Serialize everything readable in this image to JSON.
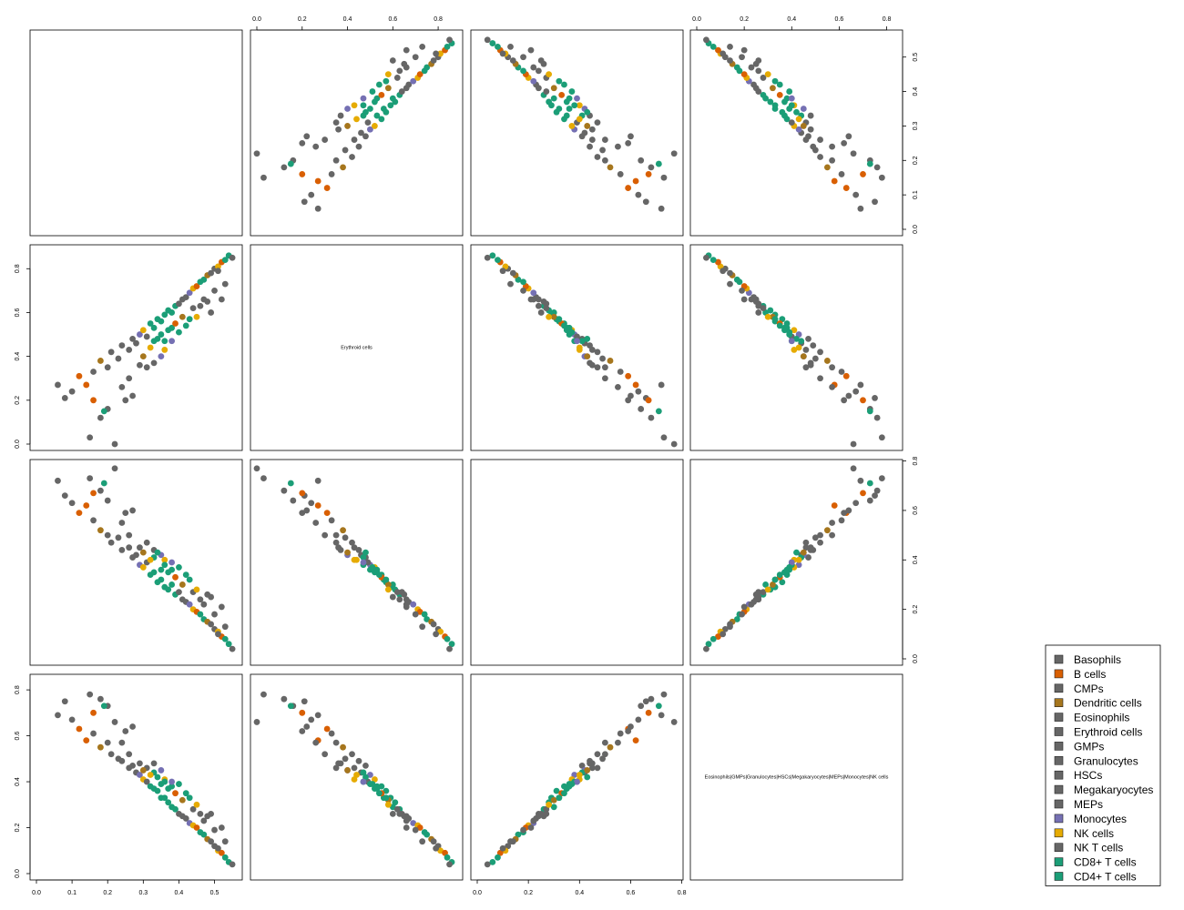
{
  "chart_data": {
    "type": "scatter",
    "kind": "scatterplot-matrix",
    "grid": false,
    "legend_position": "bottom-right",
    "variables": [
      {
        "label": "",
        "range": [
          0,
          0.56
        ],
        "ticks": [
          "0.0",
          "0.1",
          "0.2",
          "0.3",
          "0.4",
          "0.5"
        ]
      },
      {
        "label": "Erythroid cells",
        "range": [
          0,
          0.88
        ],
        "ticks": [
          "0.0",
          "0.2",
          "0.4",
          "0.6",
          "0.8"
        ]
      },
      {
        "label": "",
        "range": [
          0,
          0.78
        ],
        "ticks": [
          "0.0",
          "0.2",
          "0.4",
          "0.6",
          "0.8"
        ]
      },
      {
        "label": "Eosinophils|GMPs|Granulocytes|HSCs|Megakaryocytes|MEPs|Monocytes|NK cells",
        "range": [
          0,
          0.84
        ],
        "ticks": [
          "0.0",
          "0.2",
          "0.4",
          "0.6",
          "0.8"
        ]
      }
    ],
    "legend": [
      {
        "name": "Basophils",
        "color": "#666666"
      },
      {
        "name": "B cells",
        "color": "#D95F02"
      },
      {
        "name": "CMPs",
        "color": "#666666"
      },
      {
        "name": "Dendritic cells",
        "color": "#A6761D"
      },
      {
        "name": "Eosinophils",
        "color": "#666666"
      },
      {
        "name": "Erythroid cells",
        "color": "#666666"
      },
      {
        "name": "GMPs",
        "color": "#666666"
      },
      {
        "name": "Granulocytes",
        "color": "#666666"
      },
      {
        "name": "HSCs",
        "color": "#666666"
      },
      {
        "name": "Megakaryocytes",
        "color": "#666666"
      },
      {
        "name": "MEPs",
        "color": "#666666"
      },
      {
        "name": "Monocytes",
        "color": "#7570B3"
      },
      {
        "name": "NK cells",
        "color": "#E6AB02"
      },
      {
        "name": "NK T cells",
        "color": "#666666"
      },
      {
        "name": "CD8+ T cells",
        "color": "#1B9E77"
      },
      {
        "name": "CD4+ T cells",
        "color": "#1B9E77"
      }
    ],
    "points": [
      {
        "g": 0,
        "v": [
          0.06,
          0.27,
          0.72,
          0.69
        ]
      },
      {
        "g": 0,
        "v": [
          0.08,
          0.21,
          0.66,
          0.75
        ]
      },
      {
        "g": 0,
        "v": [
          0.1,
          0.24,
          0.63,
          0.67
        ]
      },
      {
        "g": 1,
        "v": [
          0.12,
          0.31,
          0.59,
          0.63
        ]
      },
      {
        "g": 1,
        "v": [
          0.14,
          0.27,
          0.62,
          0.58
        ]
      },
      {
        "g": 2,
        "v": [
          0.16,
          0.33,
          0.56,
          0.61
        ]
      },
      {
        "g": 3,
        "v": [
          0.18,
          0.38,
          0.52,
          0.55
        ]
      },
      {
        "g": 4,
        "v": [
          0.2,
          0.35,
          0.5,
          0.57
        ]
      },
      {
        "g": 5,
        "v": [
          0.21,
          0.42,
          0.47,
          0.52
        ]
      },
      {
        "g": 6,
        "v": [
          0.23,
          0.39,
          0.49,
          0.5
        ]
      },
      {
        "g": 7,
        "v": [
          0.24,
          0.45,
          0.44,
          0.49
        ]
      },
      {
        "g": 8,
        "v": [
          0.26,
          0.43,
          0.45,
          0.46
        ]
      },
      {
        "g": 9,
        "v": [
          0.27,
          0.48,
          0.41,
          0.47
        ]
      },
      {
        "g": 10,
        "v": [
          0.28,
          0.46,
          0.42,
          0.44
        ]
      },
      {
        "g": 11,
        "v": [
          0.29,
          0.5,
          0.38,
          0.43
        ]
      },
      {
        "g": 12,
        "v": [
          0.3,
          0.52,
          0.37,
          0.41
        ]
      },
      {
        "g": 13,
        "v": [
          0.31,
          0.49,
          0.39,
          0.4
        ]
      },
      {
        "g": 14,
        "v": [
          0.32,
          0.55,
          0.34,
          0.38
        ]
      },
      {
        "g": 15,
        "v": [
          0.33,
          0.53,
          0.35,
          0.37
        ]
      },
      {
        "g": 14,
        "v": [
          0.34,
          0.57,
          0.31,
          0.36
        ]
      },
      {
        "g": 15,
        "v": [
          0.35,
          0.56,
          0.32,
          0.33
        ]
      },
      {
        "g": 14,
        "v": [
          0.36,
          0.59,
          0.29,
          0.33
        ]
      },
      {
        "g": 15,
        "v": [
          0.37,
          0.61,
          0.28,
          0.31
        ]
      },
      {
        "g": 14,
        "v": [
          0.38,
          0.6,
          0.3,
          0.29
        ]
      },
      {
        "g": 15,
        "v": [
          0.39,
          0.63,
          0.26,
          0.28
        ]
      },
      {
        "g": 0,
        "v": [
          0.4,
          0.64,
          0.27,
          0.26
        ]
      },
      {
        "g": 2,
        "v": [
          0.41,
          0.66,
          0.24,
          0.25
        ]
      },
      {
        "g": 4,
        "v": [
          0.42,
          0.67,
          0.23,
          0.24
        ]
      },
      {
        "g": 11,
        "v": [
          0.43,
          0.69,
          0.22,
          0.22
        ]
      },
      {
        "g": 12,
        "v": [
          0.44,
          0.71,
          0.2,
          0.21
        ]
      },
      {
        "g": 1,
        "v": [
          0.45,
          0.72,
          0.19,
          0.2
        ]
      },
      {
        "g": 14,
        "v": [
          0.46,
          0.74,
          0.18,
          0.18
        ]
      },
      {
        "g": 15,
        "v": [
          0.47,
          0.75,
          0.16,
          0.17
        ]
      },
      {
        "g": 3,
        "v": [
          0.48,
          0.77,
          0.15,
          0.15
        ]
      },
      {
        "g": 6,
        "v": [
          0.49,
          0.78,
          0.14,
          0.14
        ]
      },
      {
        "g": 7,
        "v": [
          0.5,
          0.8,
          0.12,
          0.12
        ]
      },
      {
        "g": 12,
        "v": [
          0.51,
          0.81,
          0.11,
          0.1
        ]
      },
      {
        "g": 1,
        "v": [
          0.52,
          0.83,
          0.09,
          0.09
        ]
      },
      {
        "g": 14,
        "v": [
          0.53,
          0.84,
          0.08,
          0.07
        ]
      },
      {
        "g": 15,
        "v": [
          0.54,
          0.86,
          0.06,
          0.05
        ]
      },
      {
        "g": 8,
        "v": [
          0.22,
          0.0,
          0.77,
          0.66
        ]
      },
      {
        "g": 9,
        "v": [
          0.15,
          0.03,
          0.73,
          0.78
        ]
      },
      {
        "g": 13,
        "v": [
          0.18,
          0.12,
          0.68,
          0.76
        ]
      },
      {
        "g": 10,
        "v": [
          0.2,
          0.16,
          0.64,
          0.73
        ]
      },
      {
        "g": 0,
        "v": [
          0.25,
          0.2,
          0.59,
          0.62
        ]
      },
      {
        "g": 5,
        "v": [
          0.27,
          0.22,
          0.6,
          0.64
        ]
      },
      {
        "g": 2,
        "v": [
          0.31,
          0.35,
          0.47,
          0.46
        ]
      },
      {
        "g": 4,
        "v": [
          0.33,
          0.37,
          0.44,
          0.48
        ]
      },
      {
        "g": 11,
        "v": [
          0.35,
          0.4,
          0.42,
          0.45
        ]
      },
      {
        "g": 12,
        "v": [
          0.36,
          0.43,
          0.4,
          0.41
        ]
      },
      {
        "g": 14,
        "v": [
          0.33,
          0.47,
          0.41,
          0.44
        ]
      },
      {
        "g": 15,
        "v": [
          0.34,
          0.48,
          0.43,
          0.42
        ]
      },
      {
        "g": 14,
        "v": [
          0.35,
          0.5,
          0.36,
          0.39
        ]
      },
      {
        "g": 15,
        "v": [
          0.36,
          0.47,
          0.38,
          0.4
        ]
      },
      {
        "g": 14,
        "v": [
          0.37,
          0.52,
          0.35,
          0.37
        ]
      },
      {
        "g": 15,
        "v": [
          0.38,
          0.53,
          0.36,
          0.38
        ]
      },
      {
        "g": 1,
        "v": [
          0.39,
          0.55,
          0.33,
          0.35
        ]
      },
      {
        "g": 3,
        "v": [
          0.41,
          0.58,
          0.3,
          0.32
        ]
      },
      {
        "g": 6,
        "v": [
          0.44,
          0.62,
          0.27,
          0.28
        ]
      },
      {
        "g": 7,
        "v": [
          0.47,
          0.66,
          0.22,
          0.23
        ]
      },
      {
        "g": 8,
        "v": [
          0.5,
          0.7,
          0.18,
          0.19
        ]
      },
      {
        "g": 9,
        "v": [
          0.53,
          0.73,
          0.13,
          0.14
        ]
      },
      {
        "g": 10,
        "v": [
          0.52,
          0.66,
          0.21,
          0.2
        ]
      },
      {
        "g": 13,
        "v": [
          0.49,
          0.6,
          0.25,
          0.26
        ]
      },
      {
        "g": 12,
        "v": [
          0.45,
          0.58,
          0.28,
          0.3
        ]
      },
      {
        "g": 11,
        "v": [
          0.38,
          0.47,
          0.39,
          0.4
        ]
      },
      {
        "g": 0,
        "v": [
          0.29,
          0.36,
          0.45,
          0.48
        ]
      },
      {
        "g": 2,
        "v": [
          0.24,
          0.26,
          0.55,
          0.57
        ]
      },
      {
        "g": 1,
        "v": [
          0.16,
          0.2,
          0.67,
          0.7
        ]
      },
      {
        "g": 14,
        "v": [
          0.19,
          0.15,
          0.71,
          0.73
        ]
      },
      {
        "g": 15,
        "v": [
          0.42,
          0.54,
          0.34,
          0.35
        ]
      },
      {
        "g": 14,
        "v": [
          0.4,
          0.51,
          0.37,
          0.39
        ]
      },
      {
        "g": 15,
        "v": [
          0.43,
          0.57,
          0.32,
          0.33
        ]
      },
      {
        "g": 4,
        "v": [
          0.46,
          0.63,
          0.24,
          0.26
        ]
      },
      {
        "g": 5,
        "v": [
          0.48,
          0.65,
          0.26,
          0.25
        ]
      },
      {
        "g": 6,
        "v": [
          0.51,
          0.79,
          0.1,
          0.11
        ]
      },
      {
        "g": 7,
        "v": [
          0.55,
          0.85,
          0.04,
          0.04
        ]
      },
      {
        "g": 12,
        "v": [
          0.32,
          0.44,
          0.4,
          0.43
        ]
      },
      {
        "g": 3,
        "v": [
          0.3,
          0.4,
          0.43,
          0.45
        ]
      },
      {
        "g": 9,
        "v": [
          0.26,
          0.3,
          0.5,
          0.52
        ]
      }
    ]
  }
}
